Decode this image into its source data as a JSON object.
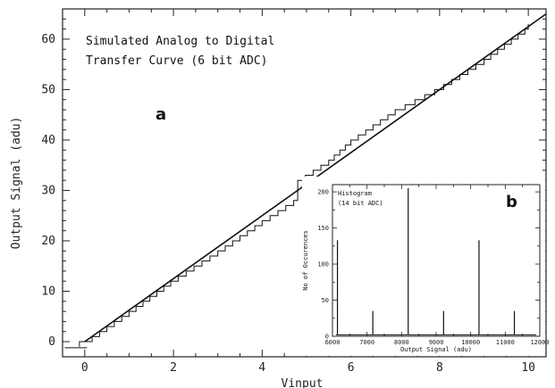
{
  "chart_data": [
    {
      "type": "line",
      "panel": "a",
      "xlabel": "Vinput",
      "ylabel": "Output Signal (adu)",
      "annotation": [
        "Simulated Analog to Digital",
        "Transfer Curve (6 bit ADC)"
      ],
      "xlim": [
        -0.5,
        10.4
      ],
      "ylim": [
        -3,
        66
      ],
      "xticks": [
        0,
        2,
        4,
        6,
        8,
        10
      ],
      "yticks": [
        0,
        10,
        20,
        30,
        40,
        50,
        60
      ],
      "series": [
        {
          "kind": "ideal-line",
          "x": [
            0,
            10.4
          ],
          "y": [
            0,
            65
          ]
        },
        {
          "kind": "staircase",
          "x": [
            0.0,
            1.0,
            2.0,
            3.0,
            4.0,
            4.8,
            4.8,
            5.5,
            6.0,
            7.0,
            8.0,
            9.0,
            10.0
          ],
          "y": [
            0.0,
            6.0,
            12.4,
            18.0,
            24.0,
            28.5,
            32.0,
            36.0,
            40.0,
            46.0,
            50.5,
            56.0,
            62.5
          ]
        }
      ]
    },
    {
      "type": "bar",
      "panel": "b",
      "title": "Histogram",
      "subtitle": "(14 bit ADC)",
      "xlabel": "Output Signal (adu)",
      "ylabel": "No of Occurences",
      "xlim": [
        6000,
        12000
      ],
      "ylim": [
        0,
        210
      ],
      "xticks": [
        6000,
        7000,
        8000,
        9000,
        10000,
        11000,
        12000
      ],
      "yticks": [
        0,
        50,
        100,
        150,
        200
      ],
      "x": [
        6144,
        7168,
        8192,
        9216,
        10240,
        11264
      ],
      "values": [
        133,
        35,
        205,
        35,
        133,
        35
      ]
    }
  ],
  "labels": {
    "panel_a": "a",
    "panel_b": "b",
    "note_line1": "Simulated Analog to Digital",
    "note_line2": "Transfer Curve (6 bit ADC)",
    "inset_title": "Histogram",
    "inset_subtitle": "(14 bit ADC)"
  }
}
